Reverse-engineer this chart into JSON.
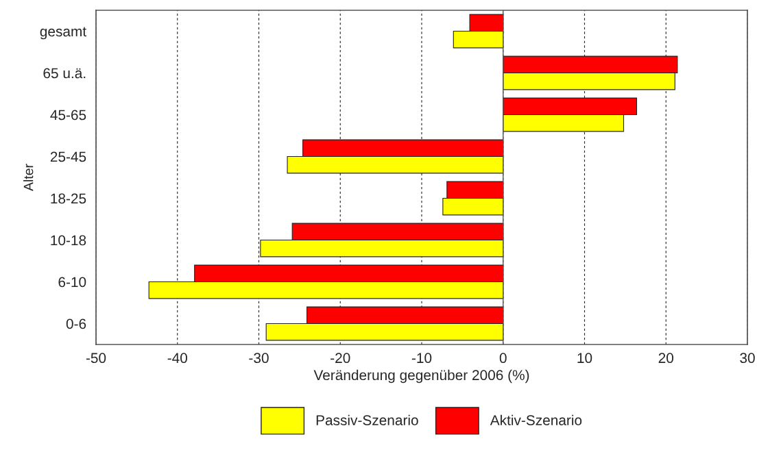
{
  "chart_data": {
    "type": "bar",
    "orientation": "horizontal",
    "xlabel": "Veränderung gegenüber 2006 (%)",
    "ylabel": "Alter",
    "categories": [
      "gesamt",
      "65 u.ä.",
      "45-65",
      "25-45",
      "18-25",
      "10-18",
      "6-10",
      "0-6"
    ],
    "series": [
      {
        "name": "Passiv-Szenario",
        "color": "#ffff00",
        "values": [
          -6.1,
          21.1,
          14.8,
          -26.5,
          -7.4,
          -29.8,
          -43.5,
          -29.1
        ]
      },
      {
        "name": "Aktiv-Szenario",
        "color": "#ff0000",
        "values": [
          -4.1,
          21.4,
          16.4,
          -24.6,
          -6.9,
          -25.9,
          -37.9,
          -24.1
        ]
      }
    ],
    "xlim": [
      -50,
      30
    ],
    "xticks": [
      -50,
      -40,
      -30,
      -20,
      -10,
      0,
      10,
      20,
      30
    ],
    "grid": "x",
    "legend": "bottom"
  }
}
